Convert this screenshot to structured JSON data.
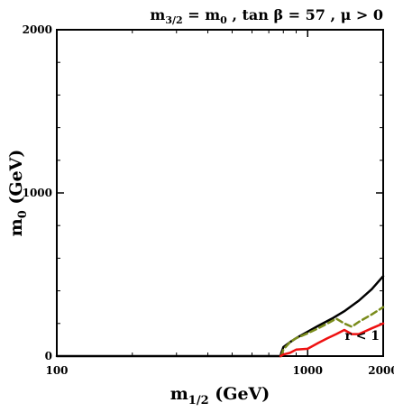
{
  "chart_data": {
    "type": "line",
    "title": "m3/2 = m0 , tan β = 57 , μ > 0",
    "title_parts": {
      "m32_base": "m",
      "m32_sub": "3/2",
      "mid": " =  m",
      "m0_sub": "0",
      "rest": " , tan β = 57 ,  μ > 0"
    },
    "xlabel": "m1/2 (GeV)",
    "xlabel_parts": {
      "base": "m",
      "sub": "1/2",
      "rest": " (GeV)"
    },
    "ylabel": "m0 (GeV)",
    "ylabel_parts": {
      "base": "m",
      "sub": "0",
      "rest": " (GeV)"
    },
    "x_scale": "log",
    "xlim": [
      100,
      2000
    ],
    "ylim": [
      0,
      2000
    ],
    "x_ticks": [
      {
        "value": 100,
        "label": "100"
      },
      {
        "value": 1000,
        "label": "1000"
      },
      {
        "value": 2000,
        "label": "2000"
      }
    ],
    "y_ticks": [
      {
        "value": 0,
        "label": "0"
      },
      {
        "value": 1000,
        "label": "1000"
      },
      {
        "value": 2000,
        "label": "2000"
      }
    ],
    "grid": false,
    "series": [
      {
        "color": "#000000",
        "style": "solid",
        "x": [
          100,
          780,
          785,
          800,
          850,
          900,
          1000,
          1100,
          1250,
          1400,
          1600,
          1800,
          2000
        ],
        "y": [
          0,
          0,
          20,
          55,
          85,
          110,
          150,
          185,
          230,
          275,
          340,
          410,
          490
        ]
      },
      {
        "color": "#7a8c1c",
        "style": "dashed",
        "x": [
          785,
          800,
          850,
          900,
          1000,
          1100,
          1200,
          1300,
          1400,
          1500,
          1600,
          1800,
          2000
        ],
        "y": [
          0,
          40,
          85,
          110,
          140,
          170,
          200,
          230,
          200,
          180,
          210,
          255,
          300
        ]
      },
      {
        "color": "#ee1111",
        "style": "solid",
        "x": [
          780,
          800,
          850,
          900,
          1000,
          1100,
          1200,
          1300,
          1400,
          1500,
          1600,
          1800,
          2000
        ],
        "y": [
          0,
          10,
          20,
          40,
          45,
          80,
          110,
          135,
          160,
          135,
          135,
          170,
          200
        ]
      }
    ],
    "annotations": [
      {
        "text": "r < 1",
        "x": 1650,
        "y": 100
      }
    ]
  }
}
